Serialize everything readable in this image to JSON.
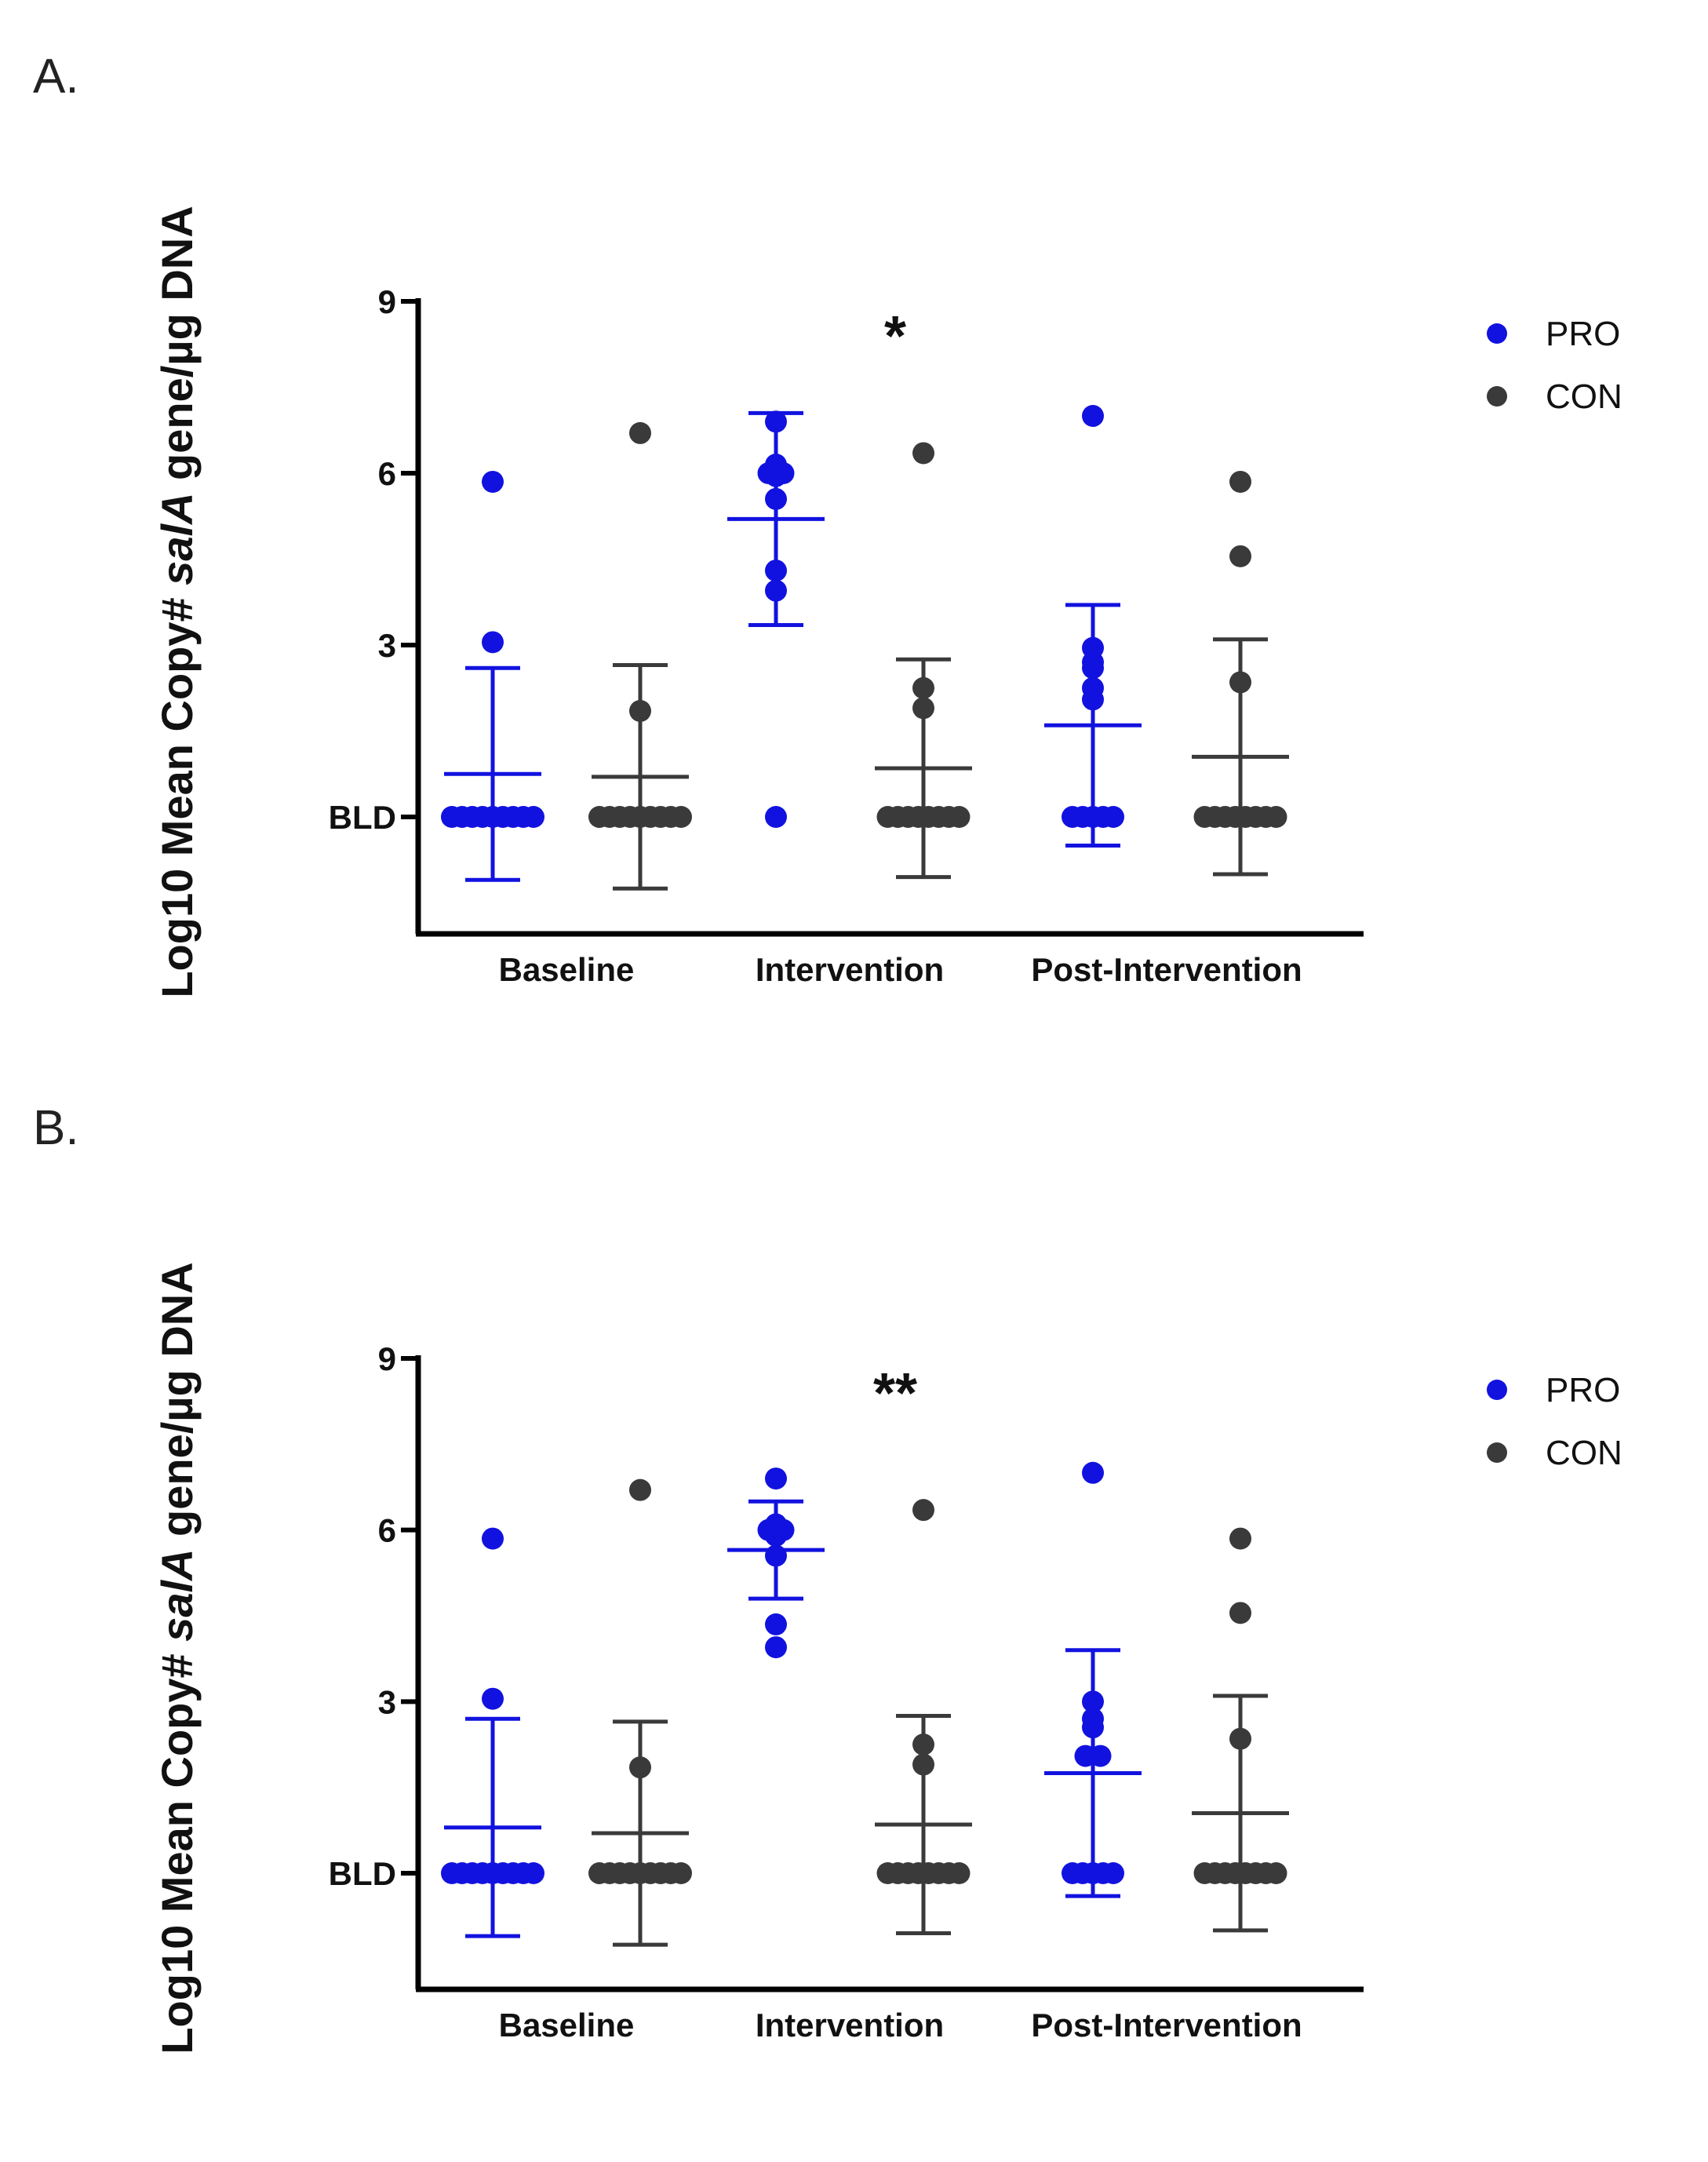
{
  "colors": {
    "PRO": "#1212e0",
    "CON": "#3a3a3a",
    "axis": "#000000"
  },
  "chart_data": [
    {
      "panel_label": "A.",
      "type": "scatter",
      "ylabel_prefix": "Log10 Mean Copy# ",
      "ylabel_italic": "salA",
      "ylabel_suffix": " gene/µg DNA",
      "categories": [
        "Baseline",
        "Intervention",
        "Post-Intervention"
      ],
      "yticks": [
        {
          "value": 0,
          "label": "BLD"
        },
        {
          "value": 3,
          "label": "3"
        },
        {
          "value": 6,
          "label": "6"
        },
        {
          "value": 9,
          "label": "9"
        }
      ],
      "ylim": [
        -2,
        9
      ],
      "annotation": {
        "text": "*",
        "category": 1,
        "y": 8.6
      },
      "legend": [
        {
          "name": "PRO",
          "color": "PRO"
        },
        {
          "name": "CON",
          "color": "CON"
        }
      ],
      "legend_position": "top-right",
      "series": [
        {
          "name": "PRO",
          "groups": [
            {
              "points": [
                5.85,
                3.05,
                0,
                0,
                0,
                0,
                0,
                0,
                0,
                0,
                0
              ],
              "mean": 0.75,
              "sd": 1.85
            },
            {
              "points": [
                6.9,
                6.1,
                6.15,
                6.05,
                6.0,
                6.0,
                5.95,
                5.55,
                4.3,
                3.95,
                0
              ],
              "mean": 5.2,
              "sd": 1.85
            },
            {
              "points": [
                7.0,
                2.95,
                2.7,
                2.6,
                2.25,
                2.05,
                0,
                0,
                0,
                0,
                0
              ],
              "mean": 1.6,
              "sd": 2.1
            }
          ]
        },
        {
          "name": "CON",
          "groups": [
            {
              "points": [
                6.7,
                1.85,
                0,
                0,
                0,
                0,
                0,
                0,
                0,
                0,
                0
              ],
              "mean": 0.7,
              "sd": 1.95
            },
            {
              "points": [
                6.35,
                2.25,
                1.9,
                0,
                0,
                0,
                0,
                0,
                0,
                0,
                0
              ],
              "mean": 0.85,
              "sd": 1.9
            },
            {
              "points": [
                5.85,
                4.55,
                2.35,
                0,
                0,
                0,
                0,
                0,
                0,
                0,
                0
              ],
              "mean": 1.05,
              "sd": 2.05
            }
          ]
        }
      ]
    },
    {
      "panel_label": "B.",
      "type": "scatter",
      "ylabel_prefix": "Log10 Mean Copy# ",
      "ylabel_italic": "salA",
      "ylabel_suffix": " gene/µg DNA",
      "categories": [
        "Baseline",
        "Intervention",
        "Post-Intervention"
      ],
      "yticks": [
        {
          "value": 0,
          "label": "BLD"
        },
        {
          "value": 3,
          "label": "3"
        },
        {
          "value": 6,
          "label": "6"
        },
        {
          "value": 9,
          "label": "9"
        }
      ],
      "ylim": [
        -2,
        9
      ],
      "annotation": {
        "text": "**",
        "category": 1,
        "y": 8.6
      },
      "legend": [
        {
          "name": "PRO",
          "color": "PRO"
        },
        {
          "name": "CON",
          "color": "CON"
        }
      ],
      "legend_position": "top-right",
      "series": [
        {
          "name": "PRO",
          "groups": [
            {
              "points": [
                5.85,
                3.05,
                0,
                0,
                0,
                0,
                0,
                0,
                0,
                0,
                0
              ],
              "mean": 0.8,
              "sd": 1.9
            },
            {
              "points": [
                6.9,
                6.1,
                6.05,
                6.0,
                6.0,
                5.95,
                5.9,
                5.55,
                4.35,
                3.95
              ],
              "mean": 5.65,
              "sd": 0.85
            },
            {
              "points": [
                7.0,
                3.0,
                2.7,
                2.55,
                2.05,
                2.05,
                0,
                0,
                0,
                0,
                0
              ],
              "mean": 1.75,
              "sd": 2.15
            }
          ]
        },
        {
          "name": "CON",
          "groups": [
            {
              "points": [
                6.7,
                1.85,
                0,
                0,
                0,
                0,
                0,
                0,
                0,
                0,
                0
              ],
              "mean": 0.7,
              "sd": 1.95
            },
            {
              "points": [
                6.35,
                2.25,
                1.9,
                0,
                0,
                0,
                0,
                0,
                0,
                0,
                0
              ],
              "mean": 0.85,
              "sd": 1.9
            },
            {
              "points": [
                5.85,
                4.55,
                2.35,
                0,
                0,
                0,
                0,
                0,
                0,
                0,
                0
              ],
              "mean": 1.05,
              "sd": 2.05
            }
          ]
        }
      ]
    }
  ]
}
